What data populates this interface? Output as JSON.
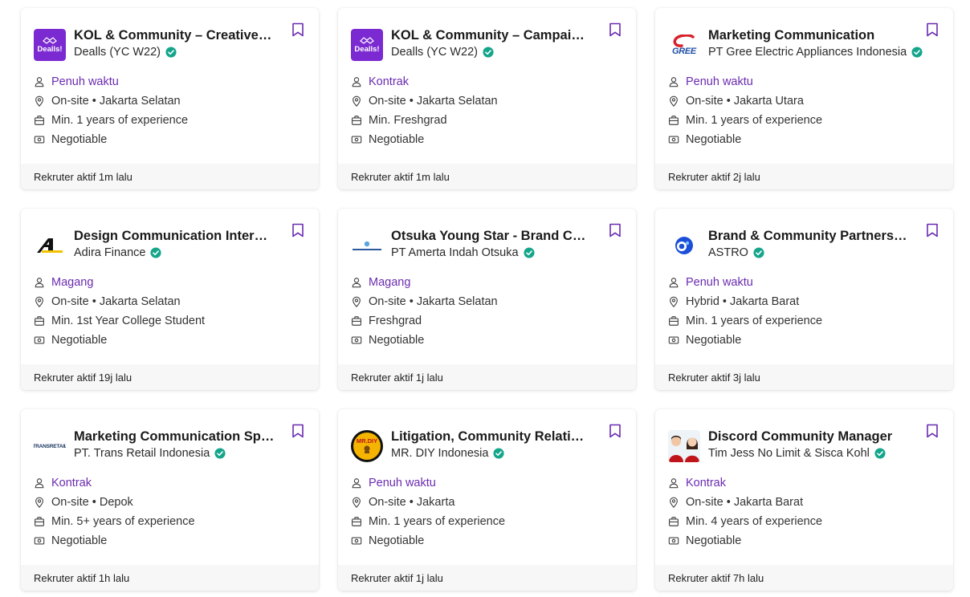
{
  "accent_color": "#6a2bb0",
  "verified_color": "#14a58a",
  "jobs": [
    {
      "title": "KOL & Community – Creative Team",
      "company": "Dealls (YC W22)",
      "logo": "dealls",
      "type": "Penuh waktu",
      "location": "On-site • Jakarta Selatan",
      "experience": "Min. 1 years of experience",
      "salary": "Negotiable",
      "recruiter_active": "Rekruter aktif 1m lalu"
    },
    {
      "title": "KOL & Community – Campaign Specialist",
      "company": "Dealls (YC W22)",
      "logo": "dealls",
      "type": "Kontrak",
      "location": "On-site • Jakarta Selatan",
      "experience": "Min. Freshgrad",
      "salary": "Negotiable",
      "recruiter_active": "Rekruter aktif 1m lalu"
    },
    {
      "title": "Marketing Communication",
      "company": "PT Gree Electric Appliances Indonesia",
      "logo": "gree",
      "type": "Penuh waktu",
      "location": "On-site • Jakarta Utara",
      "experience": "Min. 1 years of experience",
      "salary": "Negotiable",
      "recruiter_active": "Rekruter aktif 2j lalu"
    },
    {
      "title": "Design Communication Internship",
      "company": "Adira Finance",
      "logo": "adira",
      "type": "Magang",
      "location": "On-site • Jakarta Selatan",
      "experience": "Min. 1st Year College Student",
      "salary": "Negotiable",
      "recruiter_active": "Rekruter aktif 19j lalu"
    },
    {
      "title": "Otsuka Young Star - Brand Communication",
      "company": "PT Amerta Indah Otsuka",
      "logo": "otsuka",
      "type": "Magang",
      "location": "On-site • Jakarta Selatan",
      "experience": "Freshgrad",
      "salary": "Negotiable",
      "recruiter_active": "Rekruter aktif 1j lalu"
    },
    {
      "title": "Brand & Community Partnership Specialist",
      "company": "ASTRO",
      "logo": "astro",
      "type": "Penuh waktu",
      "location": "Hybrid • Jakarta Barat",
      "experience": "Min. 1 years of experience",
      "salary": "Negotiable",
      "recruiter_active": "Rekruter aktif 3j lalu"
    },
    {
      "title": "Marketing Communication Specialist",
      "company": "PT. Trans Retail Indonesia",
      "logo": "trans-retail",
      "type": "Kontrak",
      "location": "On-site • Depok",
      "experience": "Min. 5+ years of experience",
      "salary": "Negotiable",
      "recruiter_active": "Rekruter aktif 1h lalu"
    },
    {
      "title": "Litigation, Community Relations",
      "company": "MR. DIY Indonesia",
      "logo": "mrdiy",
      "type": "Penuh waktu",
      "location": "On-site • Jakarta",
      "experience": "Min. 1 years of experience",
      "salary": "Negotiable",
      "recruiter_active": "Rekruter aktif 1j lalu"
    },
    {
      "title": "Discord Community Manager",
      "company": "Tim Jess No Limit & Sisca Kohl",
      "logo": "jess-photo",
      "type": "Kontrak",
      "location": "On-site • Jakarta Barat",
      "experience": "Min. 4 years of experience",
      "salary": "Negotiable",
      "recruiter_active": "Rekruter aktif 7h lalu"
    }
  ],
  "logo_text": {
    "dealls": "Dealls!",
    "gree": "GREE",
    "trans-retail": "TRANSRETAIL",
    "mrdiy": "MR.DIY"
  }
}
